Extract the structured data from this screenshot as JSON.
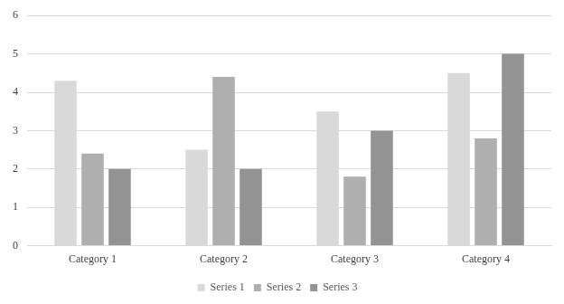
{
  "chart_data": {
    "type": "bar",
    "categories": [
      "Category 1",
      "Category 2",
      "Category 3",
      "Category 4"
    ],
    "series": [
      {
        "name": "Series 1",
        "color": "#d9d9d9",
        "values": [
          4.3,
          2.5,
          3.5,
          4.5
        ]
      },
      {
        "name": "Series 2",
        "color": "#afafaf",
        "values": [
          2.4,
          4.4,
          1.8,
          2.8
        ]
      },
      {
        "name": "Series 3",
        "color": "#939393",
        "values": [
          2,
          2,
          3,
          5
        ]
      }
    ],
    "ylim": [
      0,
      6
    ],
    "yticks": [
      0,
      1,
      2,
      3,
      4,
      5,
      6
    ],
    "grid": true,
    "legend": "bottom"
  }
}
